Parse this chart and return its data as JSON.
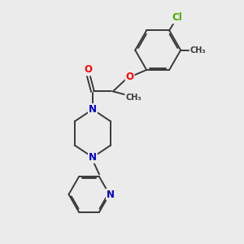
{
  "background_color": "#ebebeb",
  "bond_color": "#3a3a3a",
  "bond_width": 1.4,
  "atom_colors": {
    "O": "#ff0000",
    "N": "#0000cc",
    "Cl": "#44aa00",
    "C": "#3a3a3a",
    "CH3": "#3a3a3a"
  },
  "font_size_atom": 8.5,
  "font_size_small": 7.0
}
